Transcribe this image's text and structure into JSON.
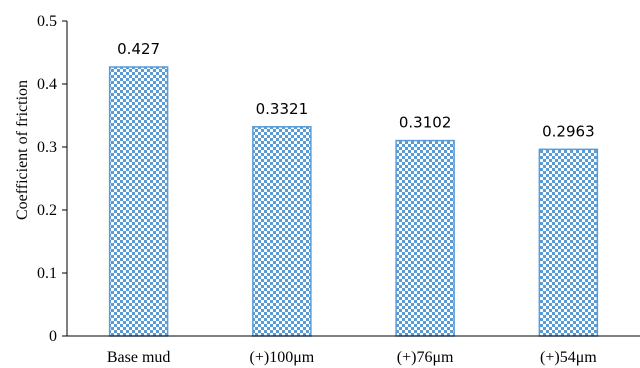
{
  "chart_data": {
    "type": "bar",
    "categories": [
      "Base mud",
      "(+)100μm",
      "(+)76μm",
      "(+)54μm"
    ],
    "values": [
      0.427,
      0.3321,
      0.3102,
      0.2963
    ],
    "data_labels": [
      "0.427",
      "0.3321",
      "0.3102",
      "0.2963"
    ],
    "ylabel": "Coefficient of friction",
    "xlabel": "",
    "ylim": [
      0,
      0.5
    ],
    "yticks": [
      0,
      0.1,
      0.2,
      0.3,
      0.4,
      0.5
    ],
    "ytick_labels": [
      "0",
      "0.1",
      "0.2",
      "0.3",
      "0.4",
      "0.5"
    ],
    "grid": false,
    "legend": "none",
    "bar_fill": "#5b9bd5",
    "bar_pattern": "checkered"
  }
}
